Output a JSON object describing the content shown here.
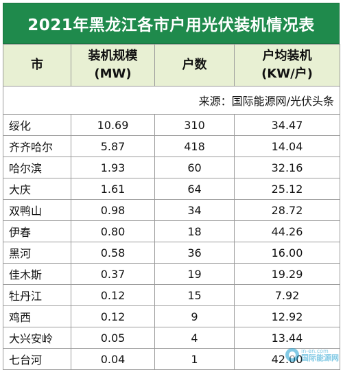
{
  "title": "2021年黑龙江各市户用光伏装机情况表",
  "headers": {
    "city": "市",
    "capacity_line1": "装机规模",
    "capacity_line2": "(MW)",
    "households": "户数",
    "per_household_line1": "户均装机",
    "per_household_line2": "(KW/户)"
  },
  "source": "来源：国际能源网/光伏头条",
  "rows": [
    {
      "city": "绥化",
      "capacity": "10.69",
      "households": "310",
      "per_household": "34.47"
    },
    {
      "city": "齐齐哈尔",
      "capacity": "5.87",
      "households": "418",
      "per_household": "14.04"
    },
    {
      "city": "哈尔滨",
      "capacity": "1.93",
      "households": "60",
      "per_household": "32.16"
    },
    {
      "city": "大庆",
      "capacity": "1.61",
      "households": "64",
      "per_household": "25.12"
    },
    {
      "city": "双鸭山",
      "capacity": "0.98",
      "households": "34",
      "per_household": "28.72"
    },
    {
      "city": "伊春",
      "capacity": "0.80",
      "households": "18",
      "per_household": "44.26"
    },
    {
      "city": "黑河",
      "capacity": "0.58",
      "households": "36",
      "per_household": "16.00"
    },
    {
      "city": "佳木斯",
      "capacity": "0.37",
      "households": "19",
      "per_household": "19.29"
    },
    {
      "city": "牡丹江",
      "capacity": "0.12",
      "households": "15",
      "per_household": "7.92"
    },
    {
      "city": "鸡西",
      "capacity": "0.12",
      "households": "9",
      "per_household": "12.92"
    },
    {
      "city": "大兴安岭",
      "capacity": "0.05",
      "households": "4",
      "per_household": "13.44"
    },
    {
      "city": "七台河",
      "capacity": "0.04",
      "households": "1",
      "per_household": "42.00"
    }
  ],
  "watermark": {
    "url": "in-en.com",
    "name": "国际能源网",
    "icon": "globe-logo-icon",
    "color": "#1fa0d0"
  },
  "colors": {
    "title_bg": "#1f8a4c",
    "header_bg": "#e8f0d3"
  }
}
